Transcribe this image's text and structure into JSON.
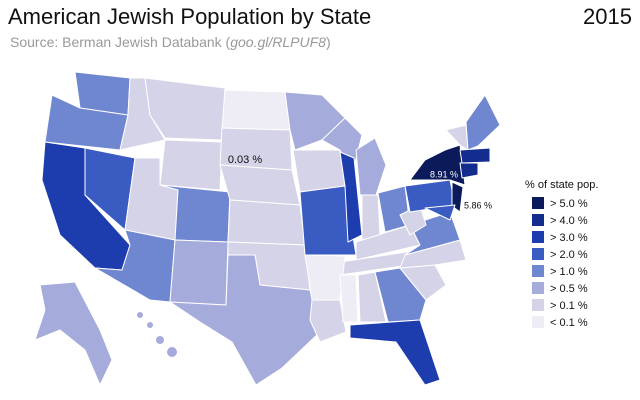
{
  "title": "American Jewish Population by State",
  "year": "2015",
  "source": {
    "prefix": "Source: Berman Jewish Databank (",
    "link": "goo.gl/RLPUF8",
    "suffix": ")"
  },
  "annotations": [
    "0.03 %",
    "8.91 %",
    "5.86 %"
  ],
  "legend": {
    "title": "% of state pop.",
    "items": [
      {
        "label": "> 5.0 %",
        "color": "#0a1a5a"
      },
      {
        "label": "> 4.0 %",
        "color": "#142c8e"
      },
      {
        "label": "> 3.0 %",
        "color": "#1d3cae"
      },
      {
        "label": "> 2.0 %",
        "color": "#3a5bc2"
      },
      {
        "label": "> 1.0 %",
        "color": "#6f86d0"
      },
      {
        "label": "> 0.5 %",
        "color": "#a5abdb"
      },
      {
        "label": "> 0.1 %",
        "color": "#d5d3e7"
      },
      {
        "label": "< 0.1 %",
        "color": "#eeecf4"
      }
    ]
  }
}
